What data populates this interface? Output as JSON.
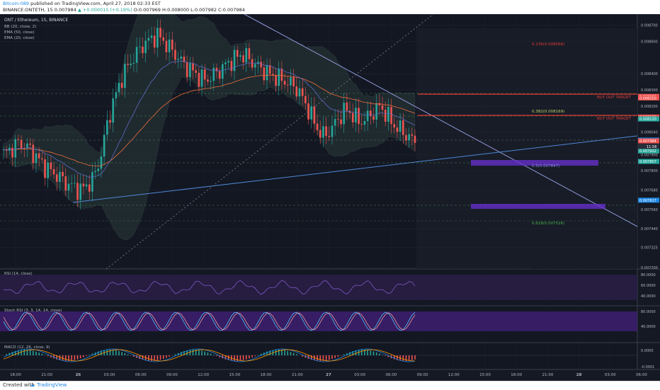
{
  "header": {
    "author": "Bitcoin-089",
    "published": "published on TradingView.com, April 27, 2018 02:33 EST",
    "symbol_line": "BINANCE:ONTETH, 15",
    "price_line": "0.007984",
    "change": "▲ +0.000015 (+0.19%)",
    "ohlc": "O:0.007969 H:0.008000 L:0.007982 C:0.007984"
  },
  "legend": {
    "title": "ONT / Ethereum, 15, BINANCE",
    "bb": "BB (20, close, 2)",
    "ema50": "EMA (50, close)",
    "ema20": "EMA (20, close)"
  },
  "fib": {
    "f0236": "0.236(0.008566)",
    "f0382": "0.382(0.008169)",
    "f05": "0.5(0.007847)",
    "f0618": "0.618(0.007526)"
  },
  "targets": {
    "t1": "BUY OUT TARGET",
    "t2": "BUY OUT TARGET"
  },
  "indicators": {
    "rsi": "RSI (14, close)",
    "stoch": "Stoch RSI (3, 3, 14, 14, close)",
    "macd": "MACD (12, 26, close, 9)"
  },
  "footer": {
    "created": "Created with",
    "brand": "TradingView"
  },
  "colors": {
    "bg": "#151924",
    "up": "#26a69a",
    "down": "#ef5350",
    "target": "#e53935",
    "trend": "#5c6bc0",
    "zone": "#7b3fd1"
  },
  "chart_data": {
    "type": "candlestick",
    "title": "ONT / Ethereum, 15, BINANCE",
    "price_axis": {
      "ticks": [
        "0.008700",
        "0.008600",
        "0.008400",
        "0.008300",
        "0.008200",
        "0.008040",
        "0.007900",
        "0.007800",
        "0.007680",
        "0.007560",
        "0.007440",
        "0.007325",
        "0.007200"
      ],
      "range": [
        0.0072,
        0.00876
      ],
      "markers": [
        {
          "label": "0.008260",
          "value": 0.00826,
          "color": "#ef5350"
        },
        {
          "label": "0.008250",
          "value": 0.00825,
          "color": "#ef5350"
        },
        {
          "label": "0.008132",
          "value": 0.008132,
          "color": "#ef5350"
        },
        {
          "label": "0.008120",
          "value": 0.00812,
          "color": "#26a69a"
        },
        {
          "label": "0.007989",
          "value": 0.007989,
          "color": "#1e88e5"
        },
        {
          "label": "0.007984",
          "value": 0.007984,
          "color": "#ef5350"
        },
        {
          "label": "0.007922",
          "value": 0.007922,
          "color": "#26a69a"
        },
        {
          "label": "0.007857",
          "value": 0.007857,
          "color": "#26a69a"
        },
        {
          "label": "0.007617",
          "value": 0.007617,
          "color": "#1e88e5"
        }
      ],
      "countdown": "11:56"
    },
    "time_axis": [
      "18:00",
      "21:00",
      "26",
      "03:00",
      "06:00",
      "09:00",
      "12:00",
      "15:00",
      "18:00",
      "21:00",
      "27",
      "03:00",
      "06:00",
      "09:00",
      "12:00",
      "15:00",
      "18:00",
      "21:00",
      "28",
      "03:00",
      "06:00"
    ],
    "rsi_ticks": [
      "80.0000",
      "60.0000",
      "40.0000"
    ],
    "stoch_ticks": [
      "80.0000",
      "40.0000"
    ],
    "macd_ticks": [
      "0.0000",
      "-0.0001"
    ],
    "closes": [
      0.0079,
      0.00793,
      0.00797,
      0.00796,
      0.00792,
      0.00787,
      0.00782,
      0.00779,
      0.00776,
      0.00772,
      0.0077,
      0.00768,
      0.00771,
      0.00776,
      0.0079,
      0.00812,
      0.00826,
      0.00838,
      0.00846,
      0.00852,
      0.00858,
      0.00861,
      0.00864,
      0.0086,
      0.00855,
      0.0085,
      0.00845,
      0.00842,
      0.00838,
      0.00836,
      0.00839,
      0.00842,
      0.00846,
      0.00849,
      0.00852,
      0.0085,
      0.00846,
      0.00843,
      0.0084,
      0.00838,
      0.00836,
      0.00834,
      0.00831,
      0.00824,
      0.00815,
      0.00806,
      0.00801,
      0.00806,
      0.00812,
      0.00818,
      0.00815,
      0.0081,
      0.00812,
      0.00816,
      0.0082,
      0.00814,
      0.00808,
      0.00805,
      0.00801,
      0.00798
    ]
  }
}
